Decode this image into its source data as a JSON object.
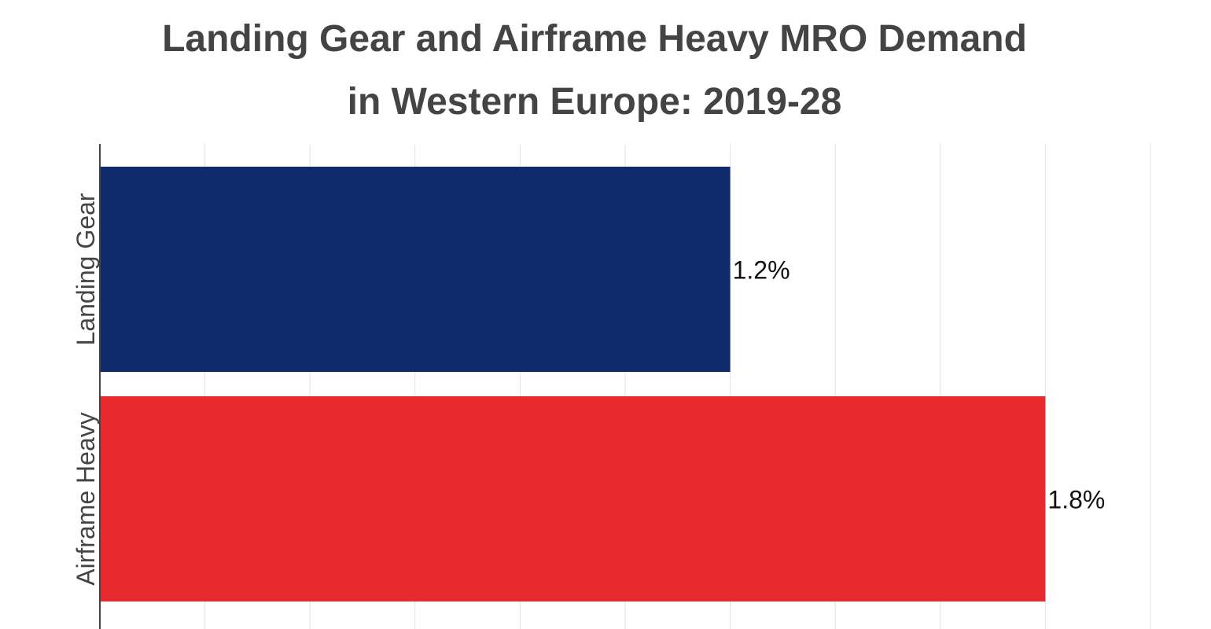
{
  "chart_data": {
    "type": "bar",
    "orientation": "horizontal",
    "title_lines": [
      "Landing Gear and Airframe Heavy MRO Demand",
      "in Western Europe: 2019-28"
    ],
    "categories": [
      "Landing Gear",
      "Airframe Heavy"
    ],
    "values": [
      1.2,
      1.8
    ],
    "data_labels": [
      "1.2%",
      "1.8%"
    ],
    "colors": [
      "#0f2b6b",
      "#e8292d"
    ],
    "xlim": [
      0,
      2.0
    ],
    "grid_step": 0.2,
    "grid": true,
    "xlabel": "",
    "ylabel": ""
  }
}
